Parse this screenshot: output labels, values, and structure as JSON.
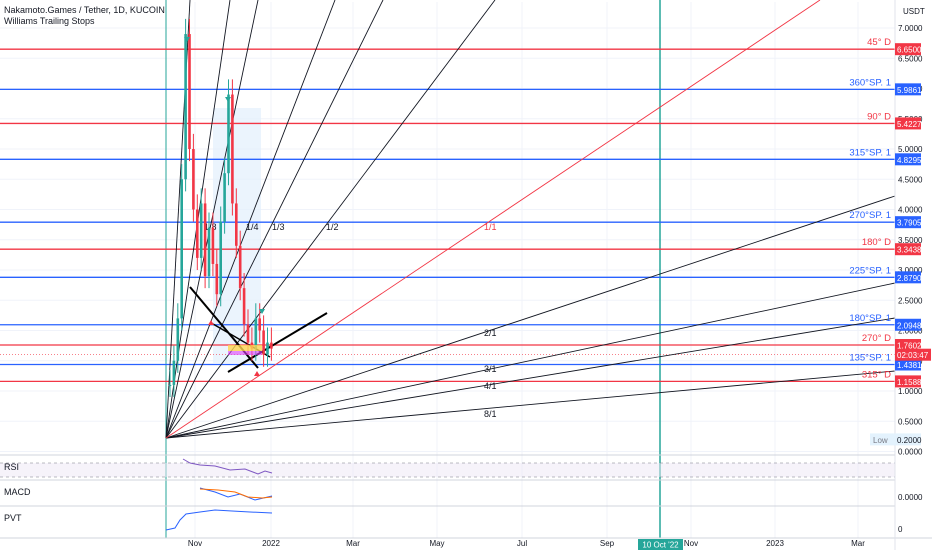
{
  "header": {
    "title": "Nakamoto.Games / Tether, 1D, KUCOIN",
    "indicator": "Williams Trailing Stops",
    "currency": "USDT"
  },
  "colors": {
    "red": "#f23645",
    "blue": "#2962ff",
    "green": "#26a69a",
    "fan": "#131722",
    "gray": "#787b86",
    "purple": "#7e57c2",
    "shade": "#e3f0fc"
  },
  "chart_data": {
    "type": "line",
    "title": "Nakamoto.Games / Tether, 1D, KUCOIN",
    "y_ticks": [
      "7.0000",
      "6.5000",
      "6.0000",
      "5.5000",
      "5.0000",
      "4.5000",
      "4.0000",
      "3.5000",
      "3.0000",
      "2.5000",
      "2.0000",
      "1.5000",
      "1.0000",
      "0.5000",
      "0.0000"
    ],
    "x_ticks": [
      "Nov",
      "2022",
      "Mar",
      "May",
      "Jul",
      "Sep",
      "Nov",
      "2023",
      "Mar"
    ],
    "ylim": [
      -0.05,
      7.3
    ],
    "levels": [
      {
        "label": "45° D",
        "value": 6.65,
        "price": "6.6500",
        "color": "red"
      },
      {
        "label": "360°SP. 1",
        "value": 5.9861,
        "price": "5.9861",
        "color": "blue"
      },
      {
        "label": "90° D",
        "value": 5.4227,
        "price": "5.4227",
        "color": "red"
      },
      {
        "label": "315°SP. 1",
        "value": 4.8295,
        "price": "4.8295",
        "color": "blue"
      },
      {
        "label": "270°SP. 1",
        "value": 3.7905,
        "price": "3.7905",
        "color": "blue"
      },
      {
        "label": "180° D",
        "value": 3.3438,
        "price": "3.3438",
        "color": "red"
      },
      {
        "label": "225°SP. 1",
        "value": 2.879,
        "price": "2.8790",
        "color": "blue"
      },
      {
        "label": "180°SP. 1",
        "value": 2.0948,
        "price": "2.0948",
        "color": "blue"
      },
      {
        "label": "270° D",
        "value": 1.7602,
        "price": "1.7602",
        "color": "red"
      },
      {
        "label": "135°SP. 1",
        "value": 1.4381,
        "price": "1.4381",
        "color": "blue"
      },
      {
        "label": "315° D",
        "value": 1.1588,
        "price": "1.1588",
        "color": "red"
      }
    ],
    "current_price": {
      "value": 1.6,
      "price": "02:03:47"
    },
    "low": {
      "label": "Low",
      "value": 0.2,
      "price": "0.2000"
    },
    "date_marker": "10 Oct '22",
    "fan_labels": [
      "1/8",
      "1/4",
      "1/3",
      "1/2",
      "1/1",
      "2/1",
      "3/1",
      "4/1",
      "8/1"
    ],
    "price_series": [
      1.1,
      1.5,
      2.2,
      4.5,
      6.9,
      5.0,
      4.0,
      3.2,
      4.1,
      2.9,
      3.7,
      3.1,
      2.6,
      3.8,
      4.6,
      5.9,
      4.1,
      3.4,
      2.7,
      2.1,
      1.8,
      1.7,
      2.2,
      2.0,
      1.6,
      1.8,
      1.7
    ]
  },
  "panes": {
    "rsi": {
      "label": "RSI"
    },
    "macd": {
      "label": "MACD",
      "price": "0.0000"
    },
    "pvt": {
      "label": "PVT",
      "price": "0"
    }
  }
}
